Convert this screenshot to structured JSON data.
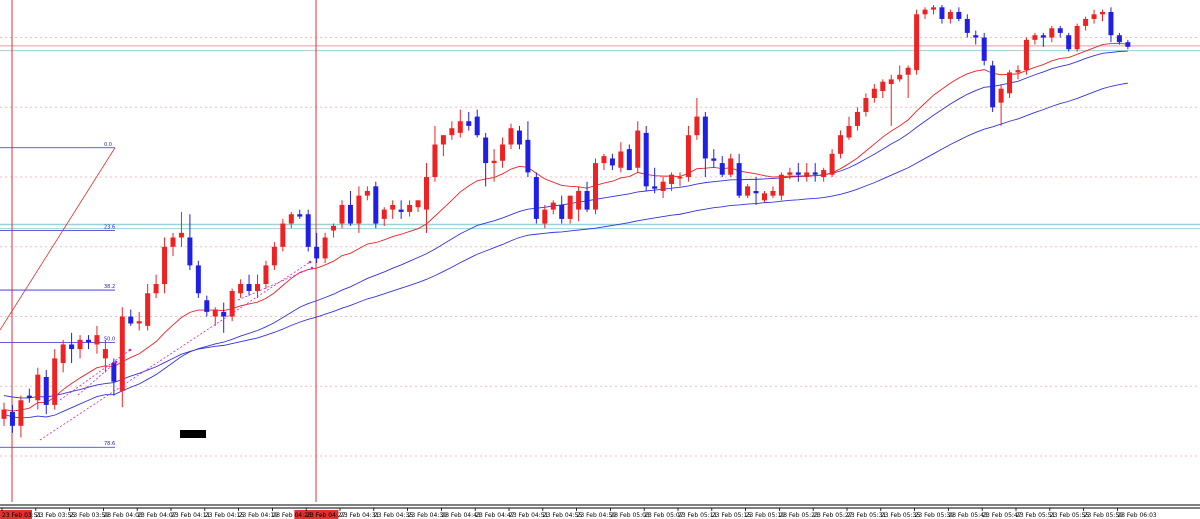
{
  "colors": {
    "bull": "#ee2222",
    "bear": "#1f1fe6",
    "ma_fast": "#ee2222",
    "ma_slow": "#3333dd",
    "hline_light": "#9fd0d8",
    "hline_red": "#e99aa0",
    "vline": "#e03030",
    "grid_dotted": "#f3a0a8",
    "fib": "#2a2ad0",
    "arrow": "#d020d0",
    "axis": "#000000"
  },
  "chart_data": {
    "type": "candlestick",
    "title": "",
    "xlabel": "",
    "ylabel": "",
    "ylim": [
      0,
      100
    ],
    "grid": "horizontal dotted",
    "x_tick_labels": [
      "23 Feb 03:51",
      "23 Feb 03:55",
      "23 Feb 03:59",
      "23 Feb 04:03",
      "23 Feb 04:07",
      "23 Feb 04:11",
      "23 Feb 04:15",
      "23 Feb 04:19",
      "23 Feb 04:23",
      "23 Feb 04:27",
      "23 Feb 04:31",
      "23 Feb 04:35",
      "23 Feb 04:39",
      "23 Feb 04:43",
      "23 Feb 04:47",
      "23 Feb 04:51",
      "23 Feb 04:55",
      "23 Feb 04:59",
      "23 Feb 05:03",
      "23 Feb 05:07",
      "23 Feb 05:11",
      "23 Feb 05:15",
      "23 Feb 05:19",
      "23 Feb 05:23",
      "23 Feb 05:27",
      "23 Feb 05:31",
      "23 Feb 05:35",
      "23 Feb 05:39",
      "23 Feb 05:43",
      "23 Feb 05:47",
      "23 Feb 05:51",
      "23 Feb 05:55",
      "23 Feb 05:59",
      "23 Feb 06:03"
    ],
    "highlighted_x_labels": [
      "23 Feb 03:51",
      "23 Feb 04:23"
    ],
    "fib_levels": [
      {
        "label": "0.0",
        "value": 69.3
      },
      {
        "label": "23.6",
        "value": 51.5
      },
      {
        "label": "38.2",
        "value": 38.7
      },
      {
        "label": "50.0",
        "value": 27.4
      },
      {
        "label": "78.6",
        "value": 4.9
      }
    ],
    "horizontal_levels": [
      91.2,
      90.2,
      51.9,
      52.8
    ],
    "candles": [
      {
        "o": 11,
        "h": 14.5,
        "l": 9.5,
        "c": 13
      },
      {
        "o": 12.5,
        "h": 14,
        "l": 8,
        "c": 9.5
      },
      {
        "o": 9.5,
        "h": 16,
        "l": 7,
        "c": 15
      },
      {
        "o": 16,
        "h": 17.5,
        "l": 14.5,
        "c": 15.5
      },
      {
        "o": 15,
        "h": 22,
        "l": 13,
        "c": 20.5
      },
      {
        "o": 20,
        "h": 21.5,
        "l": 12,
        "c": 14
      },
      {
        "o": 14,
        "h": 26,
        "l": 13,
        "c": 24
      },
      {
        "o": 23,
        "h": 28,
        "l": 21,
        "c": 27
      },
      {
        "o": 27,
        "h": 29.5,
        "l": 23,
        "c": 26
      },
      {
        "o": 26,
        "h": 29,
        "l": 24,
        "c": 28
      },
      {
        "o": 28,
        "h": 29,
        "l": 26,
        "c": 27.5
      },
      {
        "o": 27,
        "h": 31,
        "l": 25,
        "c": 29
      },
      {
        "o": 24,
        "h": 28,
        "l": 21,
        "c": 26
      },
      {
        "o": 23,
        "h": 24,
        "l": 16,
        "c": 19
      },
      {
        "o": 17,
        "h": 35,
        "l": 13.5,
        "c": 33
      },
      {
        "o": 33,
        "h": 34.5,
        "l": 31,
        "c": 31.5
      },
      {
        "o": 31.5,
        "h": 34,
        "l": 30,
        "c": 32
      },
      {
        "o": 31,
        "h": 40,
        "l": 30,
        "c": 38
      },
      {
        "o": 38,
        "h": 42,
        "l": 37,
        "c": 40
      },
      {
        "o": 40,
        "h": 50,
        "l": 38,
        "c": 48
      },
      {
        "o": 48,
        "h": 51,
        "l": 46,
        "c": 50
      },
      {
        "o": 50,
        "h": 55.5,
        "l": 48,
        "c": 51
      },
      {
        "o": 50,
        "h": 55,
        "l": 43,
        "c": 44
      },
      {
        "o": 44,
        "h": 45,
        "l": 37,
        "c": 38
      },
      {
        "o": 36.5,
        "h": 37.5,
        "l": 33,
        "c": 34
      },
      {
        "o": 33,
        "h": 35,
        "l": 31,
        "c": 34.5
      },
      {
        "o": 34,
        "h": 36,
        "l": 29.5,
        "c": 33
      },
      {
        "o": 33,
        "h": 39,
        "l": 32,
        "c": 38.5
      },
      {
        "o": 38,
        "h": 41,
        "l": 37,
        "c": 40
      },
      {
        "o": 40,
        "h": 42,
        "l": 37.5,
        "c": 38.5
      },
      {
        "o": 38.5,
        "h": 42,
        "l": 37,
        "c": 40
      },
      {
        "o": 40,
        "h": 45,
        "l": 39,
        "c": 44
      },
      {
        "o": 44,
        "h": 49,
        "l": 43,
        "c": 48
      },
      {
        "o": 48,
        "h": 54,
        "l": 47,
        "c": 53
      },
      {
        "o": 53,
        "h": 55.5,
        "l": 52,
        "c": 55
      },
      {
        "o": 55,
        "h": 56,
        "l": 54,
        "c": 54.5
      },
      {
        "o": 55,
        "h": 56,
        "l": 47,
        "c": 48
      },
      {
        "o": 48,
        "h": 51,
        "l": 44.5,
        "c": 45.5
      },
      {
        "o": 45.5,
        "h": 51,
        "l": 44.5,
        "c": 50
      },
      {
        "o": 51.5,
        "h": 53,
        "l": 50,
        "c": 52.5
      },
      {
        "o": 53,
        "h": 58,
        "l": 52,
        "c": 57
      },
      {
        "o": 57,
        "h": 60,
        "l": 52.5,
        "c": 53
      },
      {
        "o": 53,
        "h": 61,
        "l": 51,
        "c": 59
      },
      {
        "o": 59,
        "h": 61,
        "l": 58,
        "c": 60
      },
      {
        "o": 61,
        "h": 62,
        "l": 52,
        "c": 53
      },
      {
        "o": 54,
        "h": 56.5,
        "l": 52.5,
        "c": 56
      },
      {
        "o": 56,
        "h": 58,
        "l": 54,
        "c": 57
      },
      {
        "o": 56,
        "h": 58,
        "l": 54,
        "c": 55.5
      },
      {
        "o": 55.5,
        "h": 58,
        "l": 54.5,
        "c": 57
      },
      {
        "o": 56.5,
        "h": 58,
        "l": 55.5,
        "c": 58
      },
      {
        "o": 56,
        "h": 66,
        "l": 51,
        "c": 63
      },
      {
        "o": 63,
        "h": 74,
        "l": 62,
        "c": 70
      },
      {
        "o": 70,
        "h": 72,
        "l": 67.5,
        "c": 72
      },
      {
        "o": 72,
        "h": 75,
        "l": 71,
        "c": 73.5
      },
      {
        "o": 72.5,
        "h": 77.5,
        "l": 71.5,
        "c": 75
      },
      {
        "o": 75,
        "h": 77,
        "l": 73,
        "c": 74
      },
      {
        "o": 76,
        "h": 77.5,
        "l": 71.5,
        "c": 72
      },
      {
        "o": 71.5,
        "h": 72.5,
        "l": 61,
        "c": 66
      },
      {
        "o": 66,
        "h": 69,
        "l": 62,
        "c": 66.5
      },
      {
        "o": 66.5,
        "h": 71.5,
        "l": 65,
        "c": 70
      },
      {
        "o": 70,
        "h": 74.5,
        "l": 69,
        "c": 73.5
      },
      {
        "o": 73,
        "h": 74,
        "l": 69,
        "c": 70
      },
      {
        "o": 71,
        "h": 75,
        "l": 63,
        "c": 64
      },
      {
        "o": 63,
        "h": 64,
        "l": 53,
        "c": 54
      },
      {
        "o": 53,
        "h": 57,
        "l": 52,
        "c": 56
      },
      {
        "o": 56,
        "h": 58,
        "l": 55,
        "c": 57.5
      },
      {
        "o": 57,
        "h": 59,
        "l": 53,
        "c": 54
      },
      {
        "o": 54,
        "h": 59,
        "l": 53,
        "c": 59
      },
      {
        "o": 56,
        "h": 61,
        "l": 53.5,
        "c": 60
      },
      {
        "o": 60,
        "h": 62,
        "l": 55.5,
        "c": 56
      },
      {
        "o": 56,
        "h": 67,
        "l": 55,
        "c": 66
      },
      {
        "o": 66,
        "h": 68,
        "l": 64.5,
        "c": 67.5
      },
      {
        "o": 67,
        "h": 68,
        "l": 64.5,
        "c": 65.5
      },
      {
        "o": 65,
        "h": 70.5,
        "l": 64,
        "c": 68.5
      },
      {
        "o": 69,
        "h": 70,
        "l": 64.5,
        "c": 64.5
      },
      {
        "o": 65,
        "h": 75,
        "l": 64,
        "c": 73
      },
      {
        "o": 72.5,
        "h": 74,
        "l": 60,
        "c": 61
      },
      {
        "o": 61,
        "h": 65,
        "l": 59.5,
        "c": 60.5
      },
      {
        "o": 60,
        "h": 63,
        "l": 58.5,
        "c": 62
      },
      {
        "o": 61.5,
        "h": 64,
        "l": 60,
        "c": 63.5
      },
      {
        "o": 63,
        "h": 64,
        "l": 61,
        "c": 63
      },
      {
        "o": 63,
        "h": 74,
        "l": 62,
        "c": 72
      },
      {
        "o": 72,
        "h": 80,
        "l": 71,
        "c": 76
      },
      {
        "o": 76,
        "h": 77,
        "l": 63,
        "c": 67
      },
      {
        "o": 67,
        "h": 69,
        "l": 65,
        "c": 66.5
      },
      {
        "o": 66,
        "h": 67.5,
        "l": 63,
        "c": 63.5
      },
      {
        "o": 63.5,
        "h": 68,
        "l": 63,
        "c": 67
      },
      {
        "o": 66,
        "h": 68,
        "l": 58.5,
        "c": 59
      },
      {
        "o": 59,
        "h": 61.5,
        "l": 58.5,
        "c": 61
      },
      {
        "o": 60,
        "h": 63,
        "l": 57,
        "c": 59.5
      },
      {
        "o": 58,
        "h": 60,
        "l": 57.5,
        "c": 59.5
      },
      {
        "o": 59,
        "h": 61,
        "l": 58.5,
        "c": 60
      },
      {
        "o": 59,
        "h": 64,
        "l": 58,
        "c": 63.5
      },
      {
        "o": 63.5,
        "h": 65,
        "l": 62.5,
        "c": 64
      },
      {
        "o": 64,
        "h": 66,
        "l": 62,
        "c": 63.5
      },
      {
        "o": 63,
        "h": 66,
        "l": 62,
        "c": 64
      },
      {
        "o": 64,
        "h": 66,
        "l": 62,
        "c": 63.5
      },
      {
        "o": 63,
        "h": 65,
        "l": 62,
        "c": 64.5
      },
      {
        "o": 63.5,
        "h": 69,
        "l": 63,
        "c": 68
      },
      {
        "o": 68,
        "h": 73,
        "l": 67,
        "c": 72
      },
      {
        "o": 71.5,
        "h": 76,
        "l": 71,
        "c": 74
      },
      {
        "o": 74,
        "h": 78,
        "l": 73,
        "c": 77
      },
      {
        "o": 77,
        "h": 81,
        "l": 76,
        "c": 80
      },
      {
        "o": 80,
        "h": 83,
        "l": 79,
        "c": 82
      },
      {
        "o": 81.5,
        "h": 84,
        "l": 80,
        "c": 83.5
      },
      {
        "o": 83,
        "h": 85,
        "l": 74,
        "c": 84
      },
      {
        "o": 84,
        "h": 87,
        "l": 83.5,
        "c": 85
      },
      {
        "o": 85,
        "h": 87,
        "l": 80,
        "c": 86.5
      },
      {
        "o": 86,
        "h": 99,
        "l": 85,
        "c": 98
      },
      {
        "o": 98,
        "h": 99.5,
        "l": 97,
        "c": 99
      },
      {
        "o": 99,
        "h": 100,
        "l": 98,
        "c": 99.5
      },
      {
        "o": 99.5,
        "h": 100,
        "l": 96,
        "c": 97
      },
      {
        "o": 97,
        "h": 99,
        "l": 96,
        "c": 98.5
      },
      {
        "o": 98.5,
        "h": 99.5,
        "l": 96.5,
        "c": 97
      },
      {
        "o": 97,
        "h": 98,
        "l": 93,
        "c": 94
      },
      {
        "o": 93.5,
        "h": 94.5,
        "l": 91.5,
        "c": 93
      },
      {
        "o": 93,
        "h": 94,
        "l": 87,
        "c": 88
      },
      {
        "o": 87,
        "h": 88,
        "l": 77,
        "c": 78
      },
      {
        "o": 79,
        "h": 83,
        "l": 74,
        "c": 82
      },
      {
        "o": 81,
        "h": 86,
        "l": 80,
        "c": 85.5
      },
      {
        "o": 85.5,
        "h": 87,
        "l": 84,
        "c": 86
      },
      {
        "o": 86,
        "h": 93,
        "l": 85,
        "c": 92.5
      },
      {
        "o": 92.5,
        "h": 94,
        "l": 91.5,
        "c": 93.5
      },
      {
        "o": 93.5,
        "h": 94,
        "l": 91,
        "c": 93
      },
      {
        "o": 93,
        "h": 95.5,
        "l": 92,
        "c": 95
      },
      {
        "o": 95,
        "h": 95.5,
        "l": 93,
        "c": 94
      },
      {
        "o": 93.5,
        "h": 94,
        "l": 90,
        "c": 90.5
      },
      {
        "o": 90.5,
        "h": 96,
        "l": 90,
        "c": 95.5
      },
      {
        "o": 95.5,
        "h": 97.5,
        "l": 94.5,
        "c": 97
      },
      {
        "o": 97,
        "h": 99,
        "l": 96,
        "c": 98
      },
      {
        "o": 98,
        "h": 99,
        "l": 96.5,
        "c": 98.5
      },
      {
        "o": 98.5,
        "h": 99.5,
        "l": 92,
        "c": 93.5
      },
      {
        "o": 93.5,
        "h": 94,
        "l": 91.5,
        "c": 92
      },
      {
        "o": 92,
        "h": 92.5,
        "l": 90.5,
        "c": 91
      }
    ],
    "ma_fast": [
      13,
      12.7,
      12.9,
      13.3,
      14.5,
      14.5,
      15.7,
      17.3,
      18.6,
      19.8,
      20.9,
      22,
      22.4,
      22.2,
      23.3,
      24.2,
      25,
      26.3,
      27.6,
      29.5,
      31.2,
      32.8,
      33.9,
      34.4,
      34.4,
      34.4,
      34.3,
      34.7,
      35.3,
      35.7,
      36.1,
      36.9,
      38.1,
      39.7,
      41.2,
      42.5,
      43.1,
      43.4,
      44.1,
      44.9,
      46.1,
      46.6,
      47.6,
      48.6,
      48.9,
      49.5,
      50.2,
      50.7,
      51.3,
      51.9,
      52.9,
      54.6,
      56.3,
      58,
      59.8,
      61.1,
      62.2,
      62.6,
      62.9,
      63.7,
      64.7,
      65.3,
      65.1,
      63.8,
      62.6,
      61.9,
      61.2,
      61,
      60.9,
      60.6,
      61.2,
      61.7,
      62.1,
      62.8,
      63.1,
      64,
      63.6,
      63.3,
      63.2,
      63.2,
      63.1,
      63.8,
      64.8,
      64.9,
      65.1,
      64.8,
      65,
      64.3,
      64,
      63.7,
      63.3,
      63,
      63.1,
      63.2,
      63.2,
      63.3,
      63.3,
      63.4,
      63.9,
      64.8,
      65.9,
      67.1,
      68.6,
      70.1,
      71.6,
      72.9,
      74,
      75.3,
      77.2,
      78.9,
      80.6,
      81.9,
      83.2,
      84.3,
      85.2,
      85.8,
      86.1,
      85.3,
      85,
      85.1,
      85.2,
      85.9,
      86.6,
      87.2,
      88,
      88.5,
      88.7,
      89.4,
      90.1,
      90.8,
      91.5,
      91.7,
      91.7,
      91.6
    ],
    "ma_slow": [
      16,
      15.7,
      15.5,
      15.5,
      15.8,
      15.7,
      16,
      16.4,
      16.9,
      17.3,
      17.8,
      18.3,
      18.6,
      18.8,
      19.5,
      20.2,
      20.8,
      21.5,
      22.2,
      23.1,
      24,
      24.9,
      25.5,
      26,
      26.3,
      26.6,
      26.8,
      27.2,
      27.6,
      28,
      28.4,
      29,
      29.6,
      30.3,
      31.1,
      31.8,
      32.4,
      32.9,
      33.5,
      34.1,
      34.8,
      35.4,
      36.1,
      36.8,
      37.3,
      37.9,
      38.5,
      39.1,
      39.7,
      40.3,
      41,
      41.8,
      42.7,
      43.6,
      44.6,
      45.5,
      46.4,
      47.1,
      47.8,
      48.5,
      49.3,
      50,
      50.5,
      50.7,
      50.9,
      51.1,
      51.2,
      51.4,
      51.6,
      51.8,
      52,
      52.3,
      52.6,
      52.9,
      53.2,
      53.6,
      53.9,
      54.2,
      54.5,
      54.8,
      55,
      55.4,
      55.8,
      56.1,
      56.4,
      56.6,
      56.9,
      57,
      57.2,
      57.3,
      57.5,
      57.6,
      57.8,
      58,
      58.1,
      58.3,
      58.4,
      58.6,
      58.9,
      59.3,
      59.8,
      60.4,
      61.1,
      61.8,
      62.6,
      63.4,
      64.2,
      65,
      66,
      67,
      68,
      69,
      70,
      70.9,
      71.8,
      72.6,
      73.3,
      73.8,
      74.4,
      75,
      75.5,
      76.2,
      76.9,
      77.5,
      78.2,
      78.8,
      79.3,
      79.9,
      80.6,
      81.3,
      82,
      82.5,
      82.9,
      83.2
    ],
    "ma_upper": [
      12,
      11.4,
      11.2,
      11.3,
      11.6,
      11.4,
      11.8,
      12.6,
      13.4,
      14.2,
      15,
      15.8,
      16.2,
      16.2,
      17,
      17.8,
      18.5,
      19.5,
      20.5,
      21.8,
      23.1,
      24.4,
      25.4,
      26.1,
      26.6,
      27.1,
      27.5,
      28.1,
      28.8,
      29.4,
      30,
      30.8,
      31.7,
      32.8,
      33.9,
      35,
      35.8,
      36.4,
      37.1,
      37.8,
      38.7,
      39.4,
      40.3,
      41.2,
      41.9,
      42.6,
      43.4,
      44.1,
      44.9,
      45.7,
      46.5,
      47.5,
      48.6,
      49.7,
      50.8,
      51.7,
      52.6,
      53.1,
      53.6,
      54.2,
      54.9,
      55.6,
      56.1,
      56.3,
      56.5,
      56.8,
      57,
      57.3,
      57.6,
      57.9,
      58.2,
      58.5,
      58.8,
      59.1,
      59.4,
      59.8,
      60,
      60.2,
      60.4,
      60.6,
      60.8,
      61.1,
      61.5,
      61.8,
      62,
      62.2,
      62.4,
      62.4,
      62.5,
      62.5,
      62.6,
      62.7,
      62.8,
      63,
      63.1,
      63.2,
      63.3,
      63.5,
      63.8,
      64.3,
      65,
      65.9,
      66.9,
      67.9,
      69,
      70.1,
      71.1,
      72.3,
      73.7,
      75,
      76.3,
      77.5,
      78.7,
      79.8,
      80.8,
      81.6,
      82.3,
      82.5,
      82.8,
      83.2,
      83.6,
      84.3,
      85,
      85.6,
      86.3,
      86.8,
      87.2,
      87.8,
      88.5,
      89.1,
      89.6,
      89.8,
      90,
      90.1
    ]
  }
}
